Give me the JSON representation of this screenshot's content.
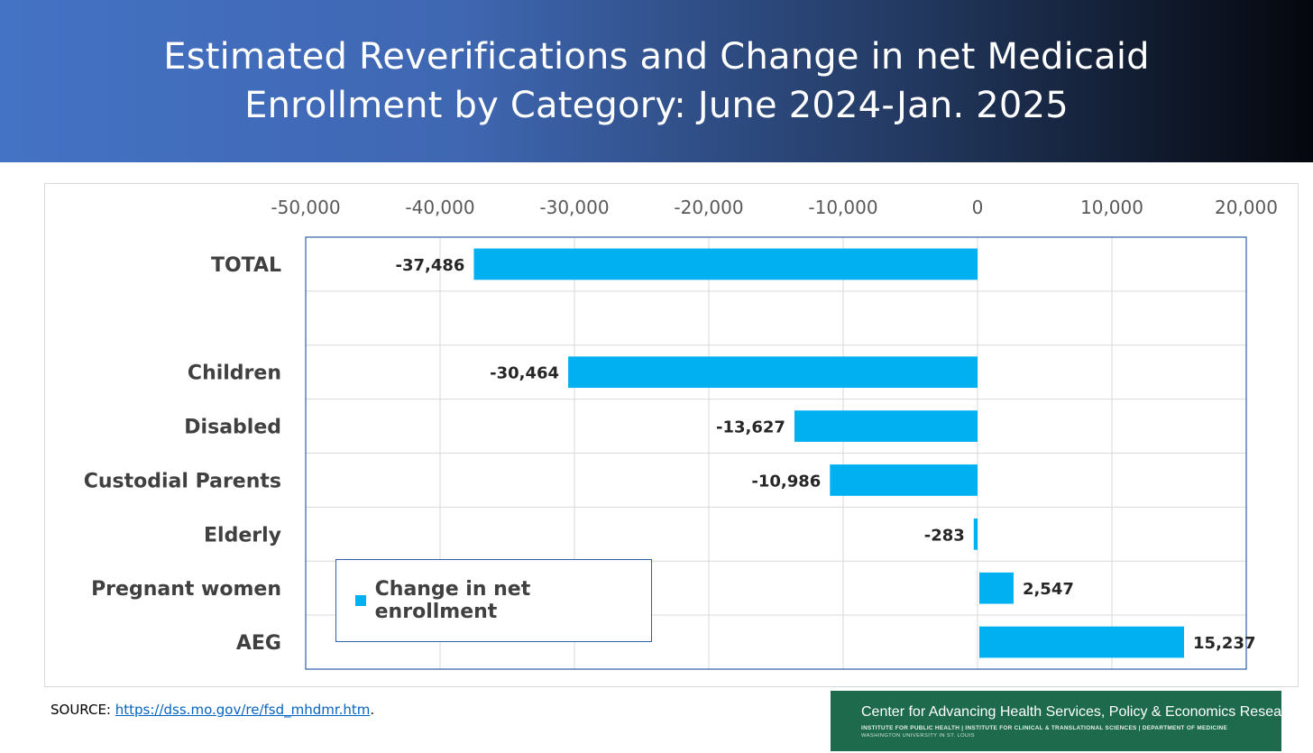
{
  "title": {
    "line1": "Estimated Reverifications and Change in net Medicaid",
    "line2": "Enrollment by Category: June 2024-Jan. 2025"
  },
  "chart_data": {
    "type": "bar",
    "orientation": "horizontal",
    "categories": [
      "TOTAL",
      "",
      "Children",
      "Disabled",
      "Custodial Parents",
      "Elderly",
      "Pregnant women",
      "AEG"
    ],
    "series": [
      {
        "name": "Change in net enrollment",
        "values": [
          -37486,
          null,
          -30464,
          -13627,
          -10986,
          -283,
          2547,
          15237
        ],
        "labels": [
          "-37,486",
          "",
          "-30,464",
          "-13,627",
          "-10,986",
          "-283",
          "2,547",
          "15,237"
        ],
        "color": "#00b0f0"
      }
    ],
    "xlim": [
      -50000,
      20000
    ],
    "xticks": [
      -50000,
      -40000,
      -30000,
      -20000,
      -10000,
      0,
      10000,
      20000
    ],
    "xtick_labels": [
      "-50,000",
      "-40,000",
      "-30,000",
      "-20,000",
      "-10,000",
      "0",
      "10,000",
      "20,000"
    ],
    "grid": true,
    "legend_position": "bottom-left inside",
    "xlabel": "",
    "ylabel": ""
  },
  "legend": {
    "label": "Change in net enrollment"
  },
  "source": {
    "prefix": "SOURCE: ",
    "link_text": "https://dss.mo.gov/re/fsd_mhdmr.htm",
    "suffix": "."
  },
  "logo": {
    "line1": "Center for Advancing Health Services, Policy & Economics Research",
    "line2": "INSTITUTE FOR PUBLIC HEALTH | INSTITUTE FOR CLINICAL & TRANSLATIONAL SCIENCES | DEPARTMENT OF MEDICINE",
    "line3": "WASHINGTON UNIVERSITY IN ST. LOUIS",
    "icon": "shield-icon"
  },
  "colors": {
    "bar": "#00b0f0",
    "plot_border": "#2e5fa8",
    "banner_start": "#4472c4",
    "banner_end": "#05070d",
    "logo_bg": "#1e6a4c"
  }
}
